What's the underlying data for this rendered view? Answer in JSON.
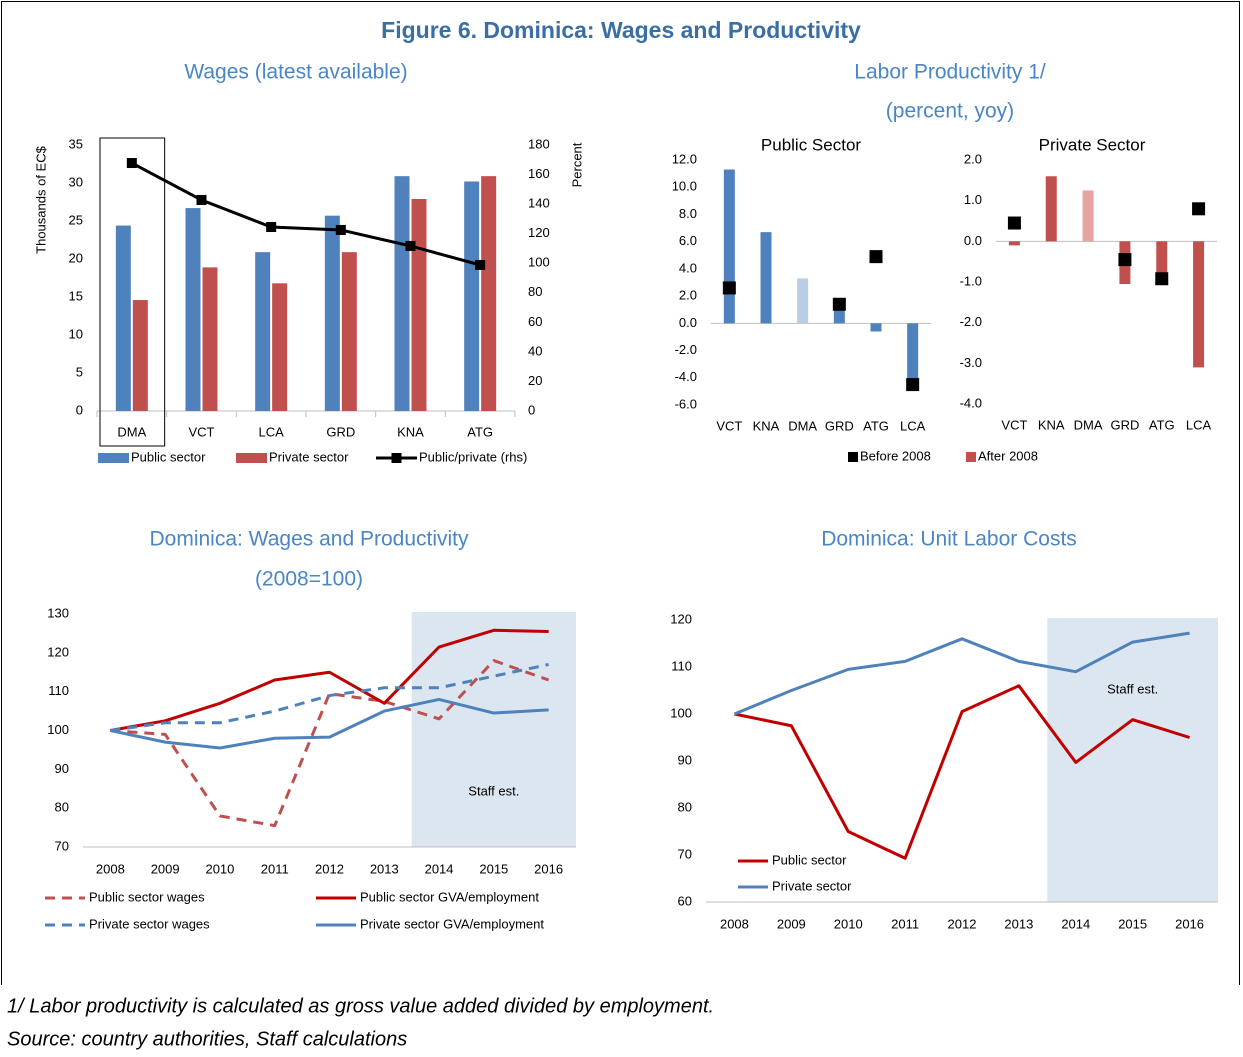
{
  "title": "Figure 6. Dominica: Wages and Productivity",
  "footnote": "1/ Labor productivity is calculated as gross value added divided by employment.",
  "source": "Source: country authorities, Staff calculations",
  "chart_data": [
    {
      "type": "bar",
      "title": "Wages (latest available)",
      "ylabel": "Thousands of EC$",
      "y2label": "Percent",
      "categories": [
        "DMA",
        "VCT",
        "LCA",
        "GRD",
        "KNA",
        "ATG"
      ],
      "series": [
        {
          "name": "Public sector",
          "type": "bar",
          "color": "#4f81bd",
          "values": [
            24.4,
            26.7,
            20.9,
            25.7,
            30.9,
            30.2
          ]
        },
        {
          "name": "Private sector",
          "type": "bar",
          "color": "#c0504d",
          "values": [
            14.6,
            18.9,
            16.8,
            20.9,
            27.9,
            30.9
          ]
        },
        {
          "name": "Public/private (rhs)",
          "type": "line",
          "axis": "y2",
          "color": "#000000",
          "marker": "square",
          "values": [
            167.8,
            142.8,
            124.5,
            122.5,
            111.7,
            98.8
          ]
        }
      ],
      "ylim": [
        0,
        35
      ],
      "yticks": [
        0,
        5,
        10,
        15,
        20,
        25,
        30,
        35
      ],
      "y2lim": [
        0,
        180
      ],
      "y2ticks": [
        0,
        20,
        40,
        60,
        80,
        100,
        120,
        140,
        160,
        180
      ],
      "highlight_index": 0
    },
    {
      "type": "bar",
      "title": "Labor Productivity 1/",
      "subtitle": "(percent, yoy)",
      "panel_title": "Public Sector",
      "categories": [
        "VCT",
        "KNA",
        "DMA",
        "GRD",
        "ATG",
        "LCA"
      ],
      "series": [
        {
          "type": "bar",
          "color": "#4f81bd",
          "colors": [
            "#4f81bd",
            "#4f81bd",
            "#b9cde5",
            "#4f81bd",
            "#4f81bd",
            "#4f81bd"
          ],
          "values": [
            11.3,
            6.7,
            3.3,
            1.0,
            -0.6,
            -4.9
          ]
        },
        {
          "type": "marker",
          "color": "#000000",
          "values": [
            2.6,
            null,
            null,
            1.4,
            4.9,
            -4.5
          ]
        }
      ],
      "ylim": [
        -6,
        12
      ],
      "yticks": [
        {
          "value": -6,
          "label": "-6.0"
        },
        {
          "value": -4,
          "label": "-4.0"
        },
        {
          "value": -2,
          "label": "-2.0"
        },
        {
          "value": 0,
          "label": "0.0"
        },
        {
          "value": 2,
          "label": "2.0"
        },
        {
          "value": 4,
          "label": "4.0"
        },
        {
          "value": 6,
          "label": "6.0"
        },
        {
          "value": 8,
          "label": "8.0"
        },
        {
          "value": 10,
          "label": "10.0"
        },
        {
          "value": 12,
          "label": "12.0"
        }
      ]
    },
    {
      "type": "bar",
      "panel_title": "Private Sector",
      "categories": [
        "VCT",
        "KNA",
        "DMA",
        "GRD",
        "ATG",
        "LCA"
      ],
      "series": [
        {
          "name": "Before 2008",
          "type": "marker",
          "color": "#000000",
          "values": [
            0.45,
            null,
            null,
            -0.45,
            -0.92,
            0.8
          ]
        },
        {
          "name": "After 2008",
          "type": "bar",
          "color": "#c0504d",
          "colors": [
            "#c0504d",
            "#c0504d",
            "#e6a3a1",
            "#c0504d",
            "#c0504d",
            "#c0504d"
          ],
          "values": [
            -0.1,
            1.6,
            1.25,
            -1.05,
            -0.95,
            -3.1
          ]
        }
      ],
      "ylim": [
        -4,
        2
      ],
      "yticks": [
        {
          "value": -4,
          "label": "-4.0"
        },
        {
          "value": -3,
          "label": "-3.0"
        },
        {
          "value": -2,
          "label": "-2.0"
        },
        {
          "value": -1,
          "label": "-1.0"
        },
        {
          "value": 0,
          "label": "0.0"
        },
        {
          "value": 1,
          "label": "1.0"
        },
        {
          "value": 2,
          "label": "2.0"
        }
      ]
    },
    {
      "type": "line",
      "title": "Dominica: Wages and Productivity",
      "subtitle": "(2008=100)",
      "x": [
        2008,
        2009,
        2010,
        2011,
        2012,
        2013,
        2014,
        2015,
        2016
      ],
      "xlim": [
        2007.5,
        2016.5
      ],
      "xticks": [
        2008,
        2009,
        2010,
        2011,
        2012,
        2013,
        2014,
        2015,
        2016
      ],
      "ylim": [
        70,
        130
      ],
      "yticks": [
        70,
        80,
        90,
        100,
        110,
        120,
        130
      ],
      "shade": {
        "x": [
          2013.5,
          2016.5
        ],
        "color": "#dce6f1",
        "label": "Staff est."
      },
      "series": [
        {
          "name": "Public sector wages",
          "color": "#c0504d",
          "dash": true,
          "values": [
            100,
            99,
            78,
            75.5,
            109.5,
            107.5,
            103,
            118,
            113
          ]
        },
        {
          "name": "Public sector GVA/employment",
          "color": "#c00000",
          "dash": false,
          "values": [
            100,
            102.5,
            107,
            113,
            115,
            107,
            121.5,
            125.8,
            125.5
          ]
        },
        {
          "name": "Private sector wages",
          "color": "#4f81bd",
          "dash": true,
          "values": [
            100,
            102,
            102,
            105,
            109,
            111,
            111,
            114,
            117
          ]
        },
        {
          "name": "Private sector GVA/employment",
          "color": "#4f81bd",
          "dash": false,
          "values": [
            100,
            97,
            95.5,
            98,
            98.3,
            105,
            108,
            104.5,
            105.3
          ]
        }
      ]
    },
    {
      "type": "line",
      "title": "Dominica: Unit Labor Costs",
      "x": [
        2008,
        2009,
        2010,
        2011,
        2012,
        2013,
        2014,
        2015,
        2016
      ],
      "xlim": [
        2007.5,
        2016.5
      ],
      "xticks": [
        2008,
        2009,
        2010,
        2011,
        2012,
        2013,
        2014,
        2015,
        2016
      ],
      "ylim": [
        60,
        120
      ],
      "yticks": [
        60,
        70,
        80,
        90,
        100,
        110,
        120
      ],
      "shade": {
        "x": [
          2013.5,
          2016.5
        ],
        "color": "#dce6f1",
        "label": "Staff est."
      },
      "series": [
        {
          "name": "Public sector",
          "color": "#c00000",
          "dash": false,
          "values": [
            100,
            97.5,
            75,
            69.3,
            100.5,
            106,
            89.7,
            98.8,
            95
          ]
        },
        {
          "name": "Private sector",
          "color": "#4f81bd",
          "dash": false,
          "values": [
            100,
            105,
            109.5,
            111.2,
            116,
            111.2,
            109,
            115.3,
            117.2
          ]
        }
      ]
    }
  ]
}
